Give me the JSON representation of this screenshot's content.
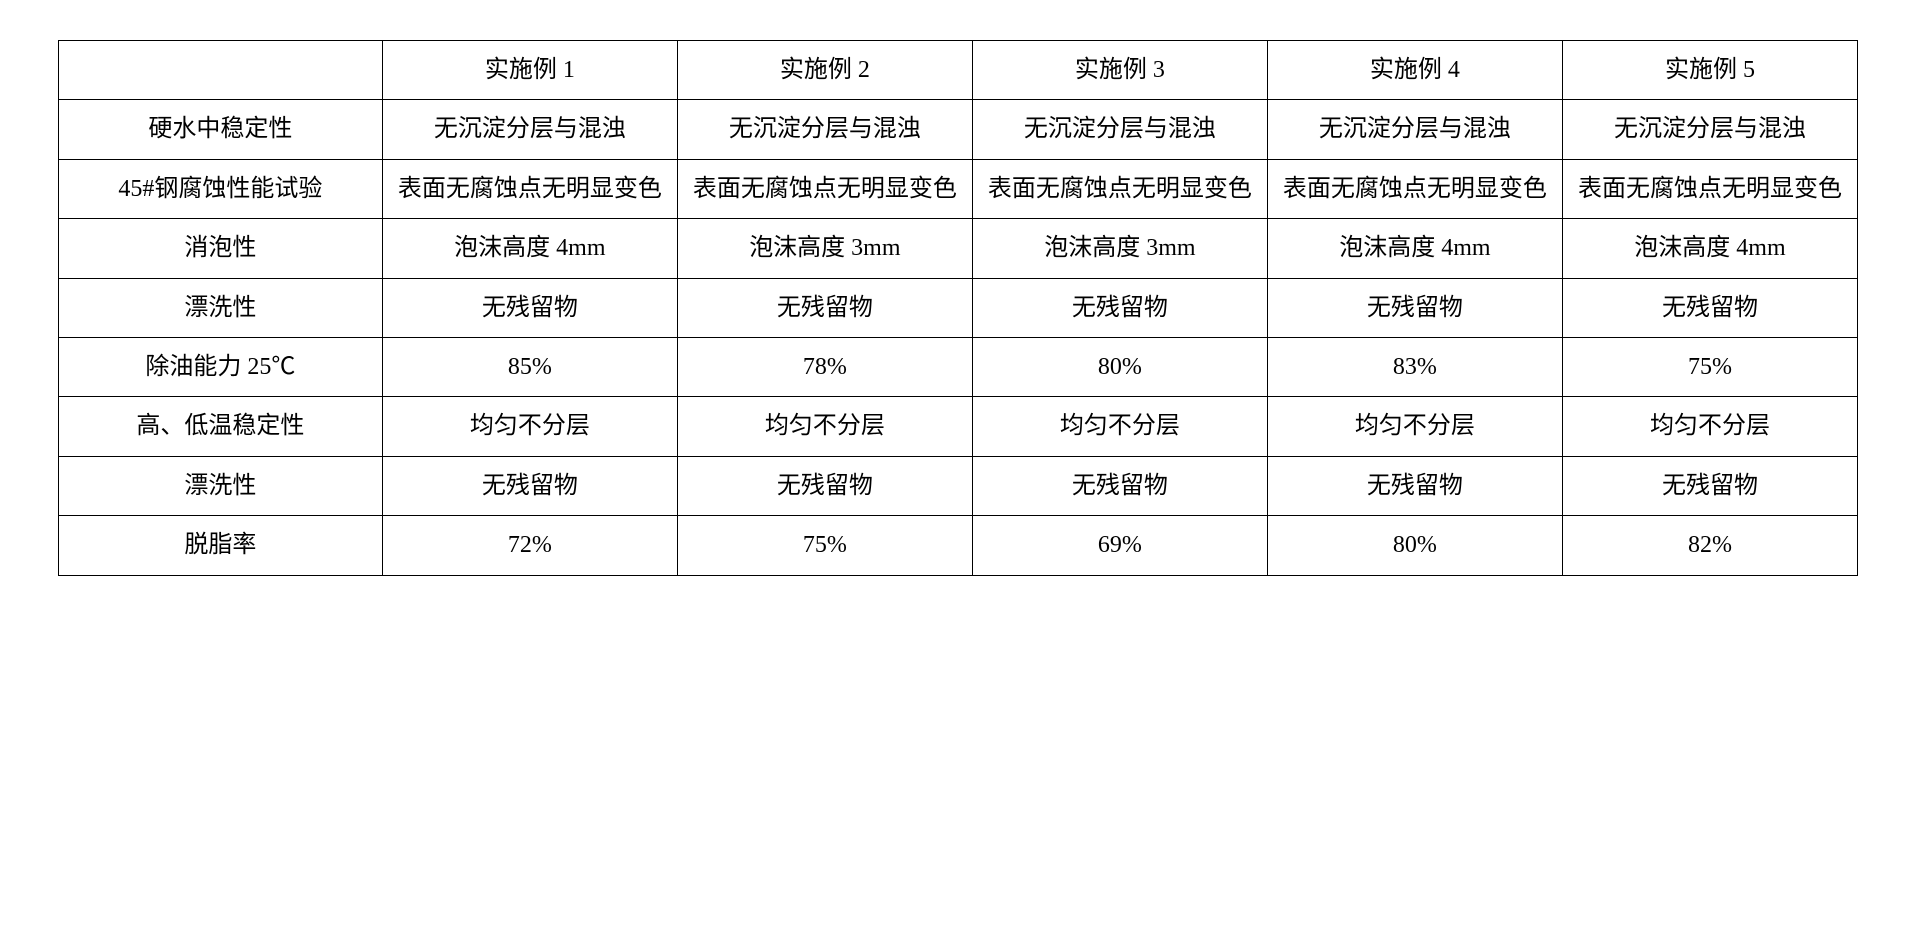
{
  "table": {
    "type": "table",
    "background_color": "#ffffff",
    "border_color": "#000000",
    "text_color": "#000000",
    "font_family": "SimSun",
    "cell_fontsize": 24,
    "columns": [
      {
        "label": "",
        "width_pct": 18
      },
      {
        "label": "实施例 1",
        "width_pct": 16.4
      },
      {
        "label": "实施例 2",
        "width_pct": 16.4
      },
      {
        "label": "实施例 3",
        "width_pct": 16.4
      },
      {
        "label": "实施例 4",
        "width_pct": 16.4
      },
      {
        "label": "实施例 5",
        "width_pct": 16.4
      }
    ],
    "rows": [
      {
        "label": "硬水中稳定性",
        "cells": [
          "无沉淀分层与混浊",
          "无沉淀分层与混浊",
          "无沉淀分层与混浊",
          "无沉淀分层与混浊",
          "无沉淀分层与混浊"
        ]
      },
      {
        "label": "45#钢腐蚀性能试验",
        "cells": [
          "表面无腐蚀点无明显变色",
          "表面无腐蚀点无明显变色",
          "表面无腐蚀点无明显变色",
          "表面无腐蚀点无明显变色",
          "表面无腐蚀点无明显变色"
        ]
      },
      {
        "label": "消泡性",
        "cells": [
          "泡沫高度 4mm",
          "泡沫高度 3mm",
          "泡沫高度 3mm",
          "泡沫高度 4mm",
          "泡沫高度 4mm"
        ]
      },
      {
        "label": "漂洗性",
        "cells": [
          "无残留物",
          "无残留物",
          "无残留物",
          "无残留物",
          "无残留物"
        ]
      },
      {
        "label": "除油能力 25℃",
        "cells": [
          "85%",
          "78%",
          "80%",
          "83%",
          "75%"
        ]
      },
      {
        "label": "高、低温稳定性",
        "cells": [
          "均匀不分层",
          "均匀不分层",
          "均匀不分层",
          "均匀不分层",
          "均匀不分层"
        ]
      },
      {
        "label": "漂洗性",
        "cells": [
          "无残留物",
          "无残留物",
          "无残留物",
          "无残留物",
          "无残留物"
        ]
      },
      {
        "label": "脱脂率",
        "cells": [
          "72%",
          "75%",
          "69%",
          "80%",
          "82%"
        ]
      }
    ]
  }
}
